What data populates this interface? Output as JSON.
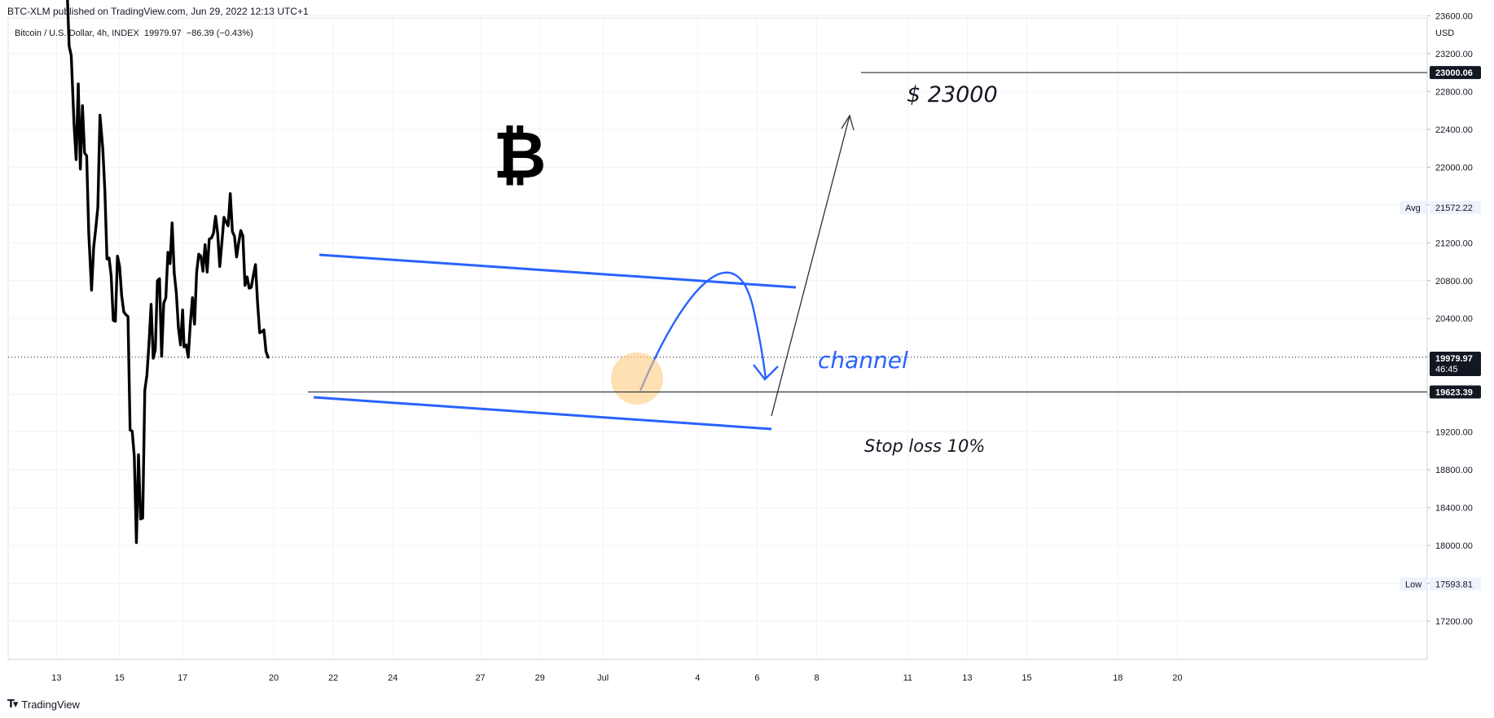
{
  "header": {
    "published": "BTC-XLM published on TradingView.com, Jun 29, 2022 12:13 UTC+1",
    "symbol": "Bitcoin / U.S. Dollar, 4h, INDEX",
    "last_price": "19979.97",
    "change": "−86.39 (−0.43%)"
  },
  "footer": {
    "brand": "TradingView",
    "logo_icon": "tradingview-logo-icon"
  },
  "chart_data": {
    "type": "line",
    "currency": "USD",
    "x_tick_labels": [
      "13",
      "15",
      "17",
      "20",
      "22",
      "24",
      "27",
      "29",
      "Jul",
      "4",
      "6",
      "8",
      "11",
      "13",
      "15",
      "18",
      "20"
    ],
    "y_ticks": [
      17200,
      17600,
      18000,
      18400,
      18800,
      19200,
      19600,
      20000,
      20400,
      20800,
      21200,
      21600,
      22000,
      22400,
      22800,
      23200,
      23600
    ],
    "y_tick_labels": [
      "17200.00",
      "17600.00",
      "18000.00",
      "18400.00",
      "18800.00",
      "19200.00",
      "19600.00",
      "20000.00",
      "20400.00",
      "20800.00",
      "21200.00",
      "21600.00",
      "22000.00",
      "22400.00",
      "22800.00",
      "23200.00",
      "23600.00"
    ],
    "ylim": [
      17000,
      23900
    ],
    "series": [
      {
        "color": "#000000",
        "values": [
          [
            0.5,
            23900
          ],
          [
            0.8,
            23280
          ],
          [
            1.1,
            23180
          ],
          [
            1.5,
            22450
          ],
          [
            1.8,
            22080
          ],
          [
            2.1,
            22880
          ],
          [
            2.4,
            21980
          ],
          [
            2.7,
            22650
          ],
          [
            3.0,
            22150
          ],
          [
            3.3,
            22120
          ],
          [
            3.6,
            21300
          ],
          [
            4.0,
            20700
          ],
          [
            4.3,
            21150
          ],
          [
            4.6,
            21350
          ],
          [
            4.9,
            21580
          ],
          [
            5.2,
            22550
          ],
          [
            5.6,
            22200
          ],
          [
            5.9,
            21750
          ],
          [
            6.2,
            21030
          ],
          [
            6.5,
            21040
          ],
          [
            6.8,
            20850
          ],
          [
            7.1,
            20380
          ],
          [
            7.4,
            20370
          ],
          [
            7.7,
            21060
          ],
          [
            8.0,
            20950
          ],
          [
            8.3,
            20640
          ],
          [
            8.6,
            20470
          ],
          [
            8.9,
            20440
          ],
          [
            9.2,
            20420
          ],
          [
            9.5,
            19220
          ],
          [
            9.8,
            19210
          ],
          [
            10.1,
            18940
          ],
          [
            10.4,
            18030
          ],
          [
            10.7,
            18960
          ],
          [
            11.0,
            18280
          ],
          [
            11.3,
            18290
          ],
          [
            11.6,
            19640
          ],
          [
            11.9,
            19800
          ],
          [
            12.2,
            20140
          ],
          [
            12.5,
            20550
          ],
          [
            12.8,
            19980
          ],
          [
            13.1,
            20070
          ],
          [
            13.4,
            20800
          ],
          [
            13.7,
            20820
          ],
          [
            14.0,
            20000
          ],
          [
            14.3,
            20560
          ],
          [
            14.6,
            20620
          ],
          [
            14.9,
            21100
          ],
          [
            15.2,
            20980
          ],
          [
            15.5,
            21410
          ],
          [
            15.8,
            20880
          ],
          [
            16.1,
            20670
          ],
          [
            16.4,
            20300
          ],
          [
            16.7,
            20120
          ],
          [
            17.0,
            20490
          ],
          [
            17.2,
            20100
          ],
          [
            17.5,
            20120
          ],
          [
            17.8,
            19990
          ],
          [
            18.1,
            20350
          ],
          [
            18.4,
            20620
          ],
          [
            18.7,
            20340
          ],
          [
            19.0,
            20890
          ],
          [
            19.3,
            21080
          ],
          [
            19.6,
            21060
          ],
          [
            19.9,
            20900
          ],
          [
            20.2,
            21180
          ],
          [
            20.5,
            20890
          ],
          [
            20.8,
            21240
          ],
          [
            21.1,
            21250
          ],
          [
            21.4,
            21300
          ],
          [
            21.7,
            21480
          ],
          [
            22.0,
            21300
          ],
          [
            22.3,
            20950
          ],
          [
            22.6,
            21200
          ],
          [
            22.9,
            21470
          ],
          [
            23.2,
            21420
          ],
          [
            23.5,
            21380
          ],
          [
            23.8,
            21720
          ],
          [
            24.1,
            21320
          ],
          [
            24.4,
            21270
          ],
          [
            24.7,
            21050
          ],
          [
            25.0,
            21200
          ],
          [
            25.3,
            21330
          ],
          [
            25.6,
            21270
          ],
          [
            25.9,
            20750
          ],
          [
            26.2,
            20840
          ],
          [
            26.5,
            20720
          ],
          [
            26.8,
            20730
          ],
          [
            27.1,
            20860
          ],
          [
            27.4,
            20970
          ],
          [
            27.7,
            20560
          ],
          [
            28.0,
            20250
          ],
          [
            28.3,
            20260
          ],
          [
            28.6,
            20280
          ],
          [
            28.9,
            20050
          ],
          [
            29.2,
            19990
          ]
        ]
      }
    ],
    "annotations": {
      "target_text": "$ 23000",
      "channel_text": "channel",
      "stop_text": "Stop loss 10%",
      "icon": "bitcoin-logo-icon",
      "channel_color": "#2962ff",
      "highlight_color": "#ffcc80"
    },
    "price_tags": [
      {
        "label": "23000.06",
        "value": 23000.06,
        "style": "dark"
      },
      {
        "label": "19979.97",
        "sub": "46:45",
        "value": 19979.97,
        "style": "dark"
      },
      {
        "label": "19623.39",
        "value": 19623.39,
        "style": "dark"
      },
      {
        "label": "21572.22",
        "prefix": "Avg",
        "value": 21572.22,
        "style": "light"
      },
      {
        "label": "17593.81",
        "prefix": "Low",
        "value": 17593.81,
        "style": "light"
      }
    ]
  }
}
